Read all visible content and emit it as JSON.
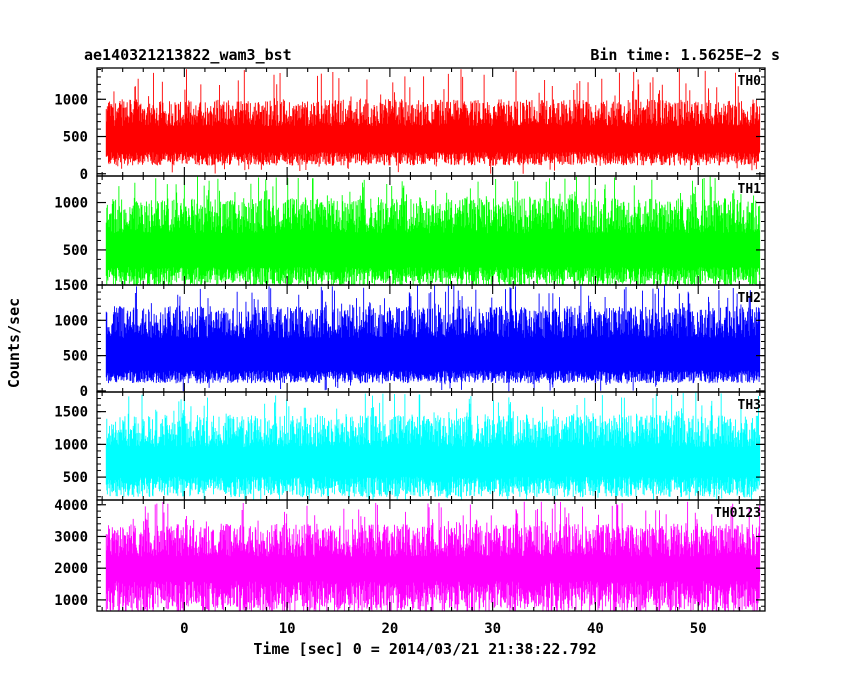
{
  "header": {
    "left_title": "ae140321213822_wam3_bst",
    "right_title": "Bin time: 1.5625E−2 s"
  },
  "axes": {
    "ylabel": "Counts/sec",
    "xlabel": "Time [sec] 0 = 2014/03/21 21:38:22.792"
  },
  "chart_data": {
    "type": "line",
    "xlim": [
      -8.5,
      56.5
    ],
    "data_xrange": [
      -7.6,
      56.0
    ],
    "x_ticks": [
      0,
      10,
      20,
      30,
      40,
      50
    ],
    "x_tick_labels": [
      "0",
      "10",
      "20",
      "30",
      "40",
      "50"
    ],
    "panels": [
      {
        "name": "TH0",
        "color": "#ff0000",
        "ylim": [
          -30,
          1420
        ],
        "yticks": [
          0,
          500,
          1000
        ],
        "ytick_labels": [
          "0",
          "500",
          "1000"
        ],
        "baseline": 200,
        "typical_max": 1000,
        "peak_max": 1420
      },
      {
        "name": "TH1",
        "color": "#00ff00",
        "ylim": [
          130,
          1280
        ],
        "yticks": [
          500,
          1000
        ],
        "ytick_labels": [
          "500",
          "1000"
        ],
        "baseline": 220,
        "typical_max": 1050,
        "peak_max": 1280
      },
      {
        "name": "TH2",
        "color": "#0000ff",
        "ylim": [
          -15,
          1500
        ],
        "yticks": [
          0,
          500,
          1000,
          1500
        ],
        "ytick_labels": [
          "0",
          "500",
          "1000",
          "1500"
        ],
        "baseline": 200,
        "typical_max": 1200,
        "peak_max": 1500
      },
      {
        "name": "TH3",
        "color": "#00ffff",
        "ylim": [
          150,
          1800
        ],
        "yticks": [
          500,
          1000,
          1500
        ],
        "ytick_labels": [
          "500",
          "1000",
          "1500"
        ],
        "baseline": 350,
        "typical_max": 1450,
        "peak_max": 1800
      },
      {
        "name": "TH0123",
        "color": "#ff00ff",
        "ylim": [
          650,
          4150
        ],
        "yticks": [
          1000,
          2000,
          3000,
          4000
        ],
        "ytick_labels": [
          "1000",
          "2000",
          "3000",
          "4000"
        ],
        "baseline": 1100,
        "typical_max": 3400,
        "peak_max": 4100
      }
    ]
  }
}
